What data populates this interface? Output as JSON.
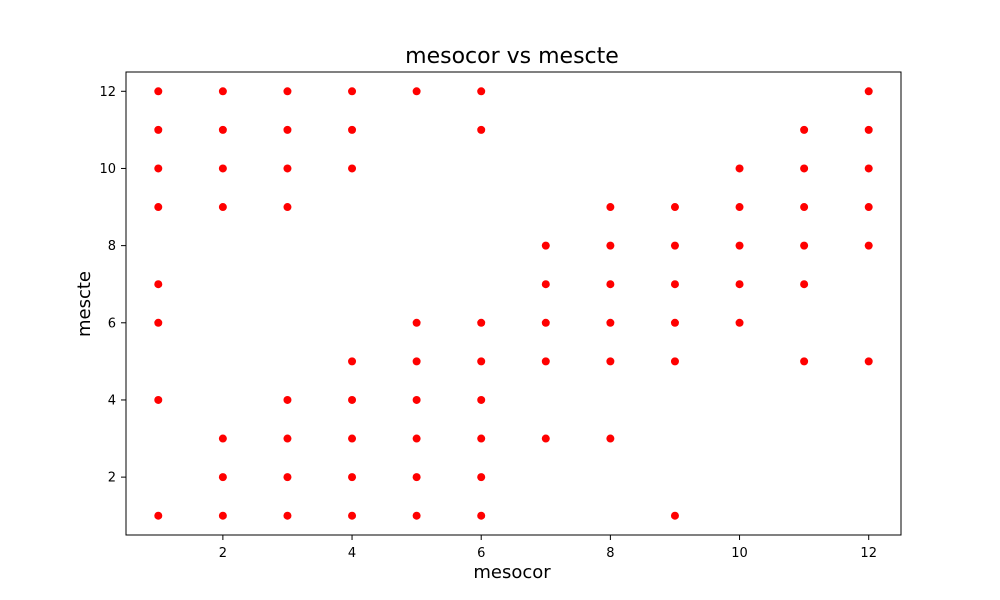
{
  "chart_data": {
    "type": "scatter",
    "title": "mesocor vs mescte",
    "xlabel": "mesocor",
    "ylabel": "mescte",
    "xlim": [
      0.5,
      12.5
    ],
    "ylim": [
      0.5,
      12.5
    ],
    "x_ticks": [
      2,
      4,
      6,
      8,
      10,
      12
    ],
    "y_ticks": [
      2,
      4,
      6,
      8,
      10,
      12
    ],
    "grid": false,
    "point_color": "#ff0000",
    "points": [
      [
        1,
        1
      ],
      [
        1,
        4
      ],
      [
        1,
        6
      ],
      [
        1,
        7
      ],
      [
        1,
        9
      ],
      [
        1,
        10
      ],
      [
        1,
        11
      ],
      [
        1,
        12
      ],
      [
        2,
        1
      ],
      [
        2,
        2
      ],
      [
        2,
        3
      ],
      [
        2,
        9
      ],
      [
        2,
        10
      ],
      [
        2,
        11
      ],
      [
        2,
        12
      ],
      [
        3,
        1
      ],
      [
        3,
        2
      ],
      [
        3,
        3
      ],
      [
        3,
        4
      ],
      [
        3,
        9
      ],
      [
        3,
        10
      ],
      [
        3,
        11
      ],
      [
        3,
        12
      ],
      [
        4,
        1
      ],
      [
        4,
        2
      ],
      [
        4,
        3
      ],
      [
        4,
        4
      ],
      [
        4,
        5
      ],
      [
        4,
        10
      ],
      [
        4,
        11
      ],
      [
        4,
        12
      ],
      [
        5,
        1
      ],
      [
        5,
        2
      ],
      [
        5,
        3
      ],
      [
        5,
        4
      ],
      [
        5,
        5
      ],
      [
        5,
        6
      ],
      [
        5,
        12
      ],
      [
        6,
        1
      ],
      [
        6,
        2
      ],
      [
        6,
        3
      ],
      [
        6,
        4
      ],
      [
        6,
        5
      ],
      [
        6,
        6
      ],
      [
        6,
        11
      ],
      [
        6,
        12
      ],
      [
        7,
        3
      ],
      [
        7,
        5
      ],
      [
        7,
        6
      ],
      [
        7,
        7
      ],
      [
        7,
        8
      ],
      [
        8,
        3
      ],
      [
        8,
        5
      ],
      [
        8,
        6
      ],
      [
        8,
        7
      ],
      [
        8,
        8
      ],
      [
        8,
        9
      ],
      [
        9,
        1
      ],
      [
        9,
        5
      ],
      [
        9,
        6
      ],
      [
        9,
        7
      ],
      [
        9,
        8
      ],
      [
        9,
        9
      ],
      [
        10,
        6
      ],
      [
        10,
        7
      ],
      [
        10,
        8
      ],
      [
        10,
        9
      ],
      [
        10,
        10
      ],
      [
        11,
        5
      ],
      [
        11,
        7
      ],
      [
        11,
        8
      ],
      [
        11,
        9
      ],
      [
        11,
        10
      ],
      [
        11,
        11
      ],
      [
        12,
        5
      ],
      [
        12,
        8
      ],
      [
        12,
        9
      ],
      [
        12,
        10
      ],
      [
        12,
        11
      ],
      [
        12,
        12
      ]
    ]
  }
}
